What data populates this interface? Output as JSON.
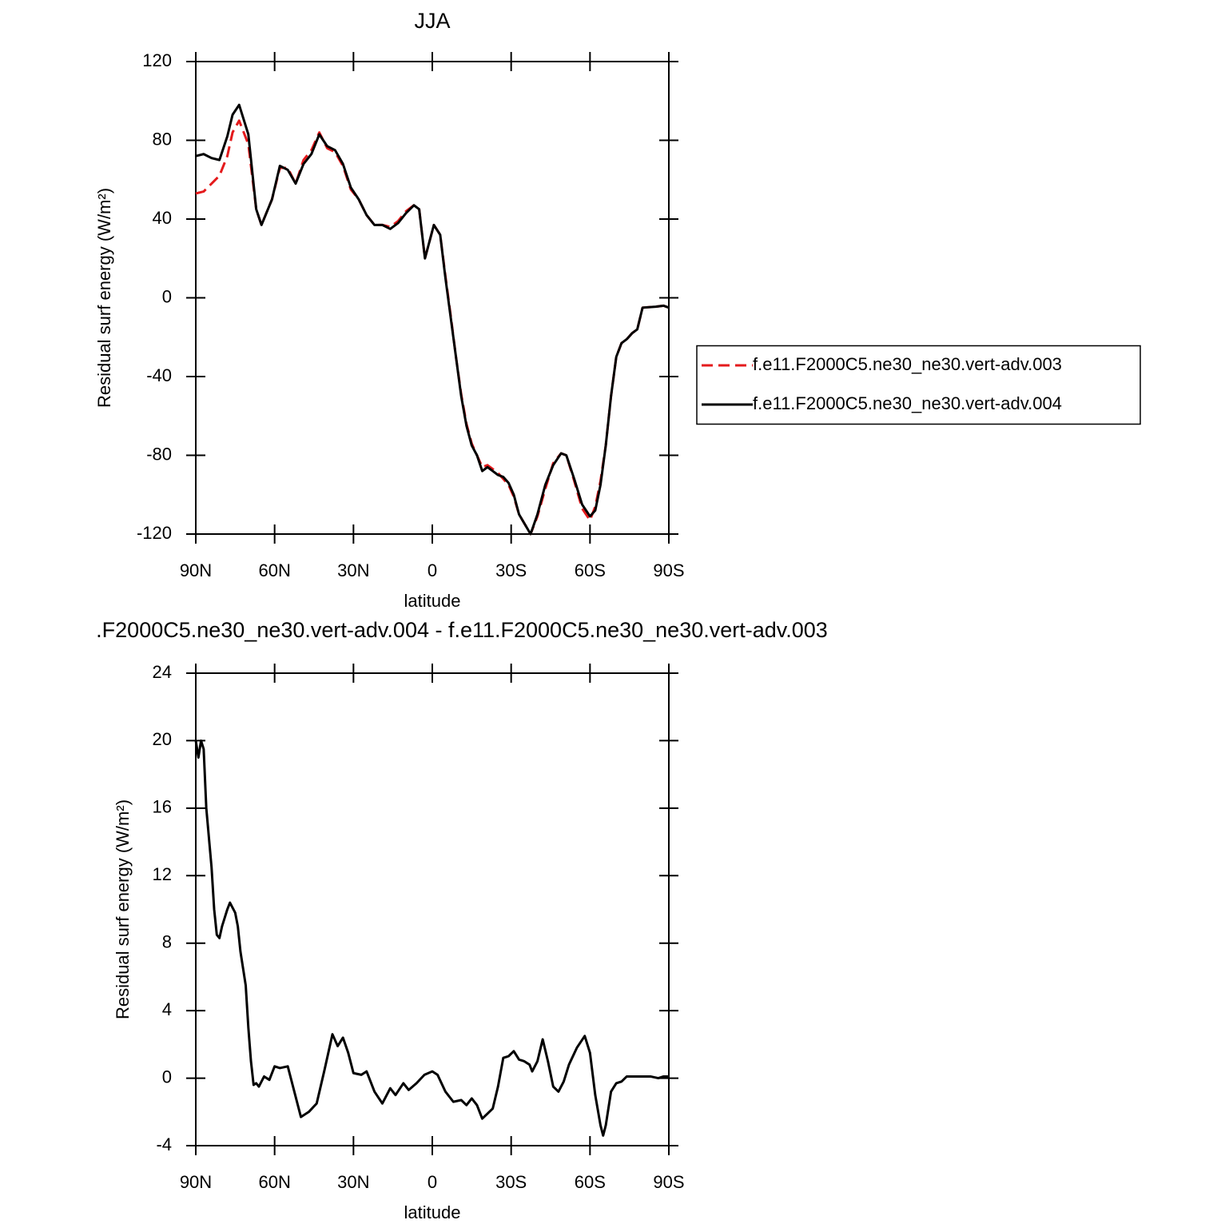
{
  "chart_data": [
    {
      "type": "line",
      "title": "JJA",
      "xlabel": "latitude",
      "ylabel": "Residual surf energy (W/m²)",
      "x": [
        90,
        87,
        84,
        81,
        78,
        76,
        73.5,
        70,
        67,
        65,
        61,
        58,
        55,
        52,
        49,
        46,
        43,
        40,
        37,
        34,
        31,
        28,
        25,
        22,
        19,
        16,
        13,
        10,
        7,
        5,
        2.8,
        -0.6,
        -3,
        -5,
        -7,
        -9,
        -11,
        -13,
        -15,
        -17,
        -19,
        -21,
        -23,
        -25,
        -27,
        -29,
        -31,
        -33,
        -37.4,
        -40,
        -43,
        -46,
        -49,
        -51,
        -54,
        -57,
        -60,
        -62,
        -64,
        -66,
        -68,
        -70,
        -72,
        -74,
        -76,
        -78,
        -80,
        -85,
        -88,
        -90
      ],
      "series": [
        {
          "name": "f.e11.F2000C5.ne30_ne30.vert-adv.003",
          "color": "#e41a1c",
          "line_style": "dashed",
          "values": [
            53,
            54,
            58,
            62,
            72,
            84,
            90,
            78,
            45,
            37,
            50,
            66,
            66,
            58,
            70,
            75,
            84,
            76,
            74,
            67,
            55,
            50,
            42,
            37,
            37,
            36,
            39,
            44,
            47,
            45,
            20,
            37,
            32,
            11,
            -9,
            -30,
            -49,
            -64,
            -74,
            -80,
            -86,
            -85,
            -87,
            -89,
            -92,
            -95,
            -101,
            -110,
            -120,
            -111,
            -97,
            -84,
            -79,
            -80,
            -93,
            -107,
            -113,
            -106,
            -93,
            -75,
            -50,
            -30,
            -23,
            -21,
            -18,
            -16,
            -5,
            -4.5,
            -4,
            -5
          ]
        },
        {
          "name": "f.e11.F2000C5.ne30_ne30.vert-adv.004",
          "color": "#000000",
          "line_style": "solid",
          "values": [
            72,
            73,
            71,
            70,
            82,
            93,
            98,
            83,
            45,
            37,
            50,
            67,
            65,
            58,
            68,
            73,
            83,
            77,
            75,
            68,
            56,
            50,
            42,
            37,
            37,
            35,
            38,
            43,
            47,
            45,
            20,
            37,
            32,
            10,
            -10,
            -30,
            -50,
            -65,
            -75,
            -80,
            -88,
            -86,
            -88,
            -90,
            -91,
            -94,
            -100,
            -110,
            -120,
            -110,
            -95,
            -85,
            -79,
            -80,
            -92,
            -105,
            -111,
            -108,
            -95,
            -75,
            -50,
            -30,
            -23,
            -21,
            -18,
            -16,
            -5,
            -4.5,
            -4,
            -5
          ]
        }
      ],
      "xlim": [
        90,
        -90
      ],
      "xticks": [
        {
          "value": 90,
          "label": "90N"
        },
        {
          "value": 60,
          "label": "60N"
        },
        {
          "value": 30,
          "label": "30N"
        },
        0,
        {
          "value": -30,
          "label": "30S"
        },
        {
          "value": -60,
          "label": "60S"
        },
        {
          "value": -90,
          "label": "90S"
        }
      ],
      "ylim": [
        -120,
        120
      ],
      "yticks": [
        -120,
        -80,
        -40,
        0,
        40,
        80,
        120
      ],
      "legend": "right"
    },
    {
      "type": "line",
      "title": ".F2000C5.ne30_ne30.vert-adv.004 - f.e11.F2000C5.ne30_ne30.vert-adv.003",
      "xlabel": "latitude",
      "ylabel": "Residual surf energy (W/m²)",
      "x": [
        90,
        89,
        88,
        87,
        86,
        84,
        83,
        82,
        81,
        80,
        78,
        77,
        75,
        74,
        73,
        71,
        70,
        69,
        68,
        67,
        66,
        64,
        62,
        60,
        58,
        55,
        53,
        50,
        47,
        44,
        41,
        38,
        36,
        34,
        32,
        30,
        27,
        25,
        22,
        19,
        16,
        14,
        11,
        9,
        6,
        3,
        0,
        -2,
        -5,
        -8,
        -11,
        -13,
        -15,
        -17,
        -19,
        -21,
        -23,
        -25,
        -27,
        -29,
        -31,
        -33,
        -35,
        -37,
        -38,
        -40,
        -42,
        -44,
        -46,
        -48,
        -50,
        -52,
        -55,
        -58,
        -60,
        -62,
        -64,
        -65,
        -66,
        -68,
        -70,
        -72,
        -74,
        -77,
        -80,
        -83,
        -86,
        -88,
        -90
      ],
      "series": [
        {
          "color": "#000000",
          "line_style": "solid",
          "values": [
            20,
            19,
            20,
            19.5,
            16,
            12.5,
            10,
            8.5,
            8.3,
            9,
            10,
            10.4,
            9.8,
            9,
            7.5,
            5.5,
            3,
            1,
            -0.4,
            -0.3,
            -0.5,
            0.1,
            -0.1,
            0.7,
            0.6,
            0.7,
            -0.5,
            -2.3,
            -2,
            -1.5,
            0.5,
            2.6,
            1.9,
            2.4,
            1.5,
            0.3,
            0.2,
            0.4,
            -0.8,
            -1.5,
            -0.6,
            -1,
            -0.3,
            -0.7,
            -0.3,
            0.2,
            0.4,
            0.2,
            -0.8,
            -1.4,
            -1.3,
            -1.6,
            -1.2,
            -1.6,
            -2.4,
            -2.1,
            -1.8,
            -0.5,
            1.2,
            1.3,
            1.6,
            1.1,
            1,
            0.8,
            0.4,
            1,
            2.3,
            1,
            -0.5,
            -0.8,
            -0.2,
            0.8,
            1.8,
            2.5,
            1.5,
            -1,
            -2.8,
            -3.4,
            -2.8,
            -0.8,
            -0.3,
            -0.2,
            0.1,
            0.1,
            0.1,
            0.1,
            0,
            0.1,
            0.1
          ]
        }
      ],
      "xlim": [
        90,
        -90
      ],
      "xticks": [
        {
          "value": 90,
          "label": "90N"
        },
        {
          "value": 60,
          "label": "60N"
        },
        {
          "value": 30,
          "label": "30N"
        },
        0,
        {
          "value": -30,
          "label": "30S"
        },
        {
          "value": -60,
          "label": "60S"
        },
        {
          "value": -90,
          "label": "90S"
        }
      ],
      "ylim": [
        -4,
        24
      ],
      "yticks": [
        -4,
        0,
        4,
        8,
        12,
        16,
        20,
        24
      ]
    }
  ]
}
